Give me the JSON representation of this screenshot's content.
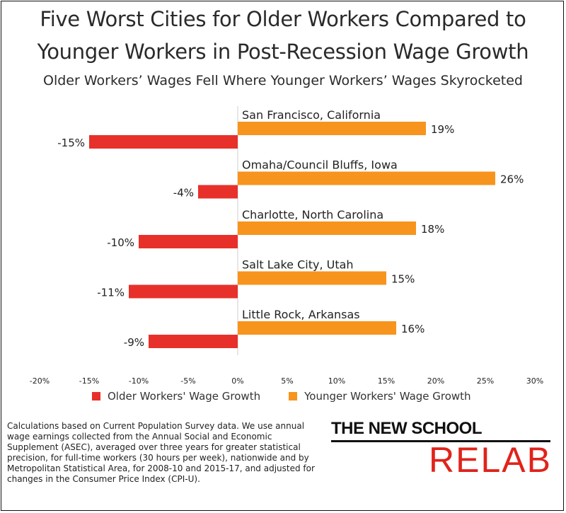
{
  "title": "Five Worst Cities for Older Workers Compared to Younger Workers in Post-Recession Wage Growth",
  "title_lines": [
    "Five Worst Cities for Older Workers Compared to",
    "Younger Workers in Post-Recession Wage Growth"
  ],
  "subtitle": "Older Workers’ Wages Fell Where Younger Workers’ Wages Skyrocketed",
  "colors": {
    "older": "#e8302a",
    "younger": "#f7941d"
  },
  "chart_data": {
    "type": "bar",
    "orientation": "horizontal",
    "categories": [
      "San Francisco, California",
      "Omaha/Council Bluffs, Iowa",
      "Charlotte, North Carolina",
      "Salt Lake City, Utah",
      "Little Rock, Arkansas"
    ],
    "series": [
      {
        "name": "Older Workers' Wage Growth",
        "values": [
          -15,
          -4,
          -10,
          -11,
          -9
        ],
        "labels": [
          "-15%",
          "-4%",
          "-10%",
          "-11%",
          "-9%"
        ]
      },
      {
        "name": "Younger Workers' Wage Growth",
        "values": [
          19,
          26,
          18,
          15,
          16
        ],
        "labels": [
          "19%",
          "26%",
          "18%",
          "15%",
          "16%"
        ]
      }
    ],
    "xlim": [
      -20,
      30
    ],
    "xticks": [
      -20,
      -15,
      -10,
      -5,
      0,
      5,
      10,
      15,
      20,
      25,
      30
    ],
    "xtick_labels": [
      "-20%",
      "-15%",
      "-10%",
      "-5%",
      "0%",
      "5%",
      "10%",
      "15%",
      "20%",
      "25%",
      "30%"
    ],
    "grid": false,
    "legend_position": "bottom"
  },
  "footnote": "Calculations based on Current Population Survey data.  We use annual wage earnings collected from the Annual Social and Economic Supplement (ASEC), averaged over three years for greater statistical precision, for full-time workers (30 hours per week), nationwide and by Metropolitan Statistical Area, for 2008-10 and 2015-17, and adjusted for changes in the Consumer Price Index (CPI-U).",
  "logo": {
    "top": "THE NEW SCHOOL",
    "bottom": "RELAB"
  }
}
